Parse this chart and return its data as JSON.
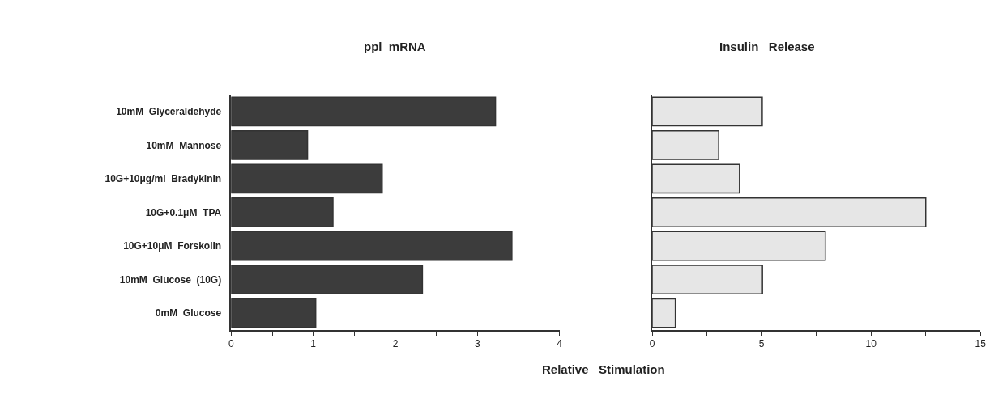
{
  "chart_data": [
    {
      "type": "bar",
      "orientation": "horizontal",
      "title": "ppl  mRNA",
      "categories": [
        "10mM  Glyceraldehyde",
        "10mM  Mannose",
        "10G+10μg/ml  Bradykinin",
        "10G+0.1μM  TPA",
        "10G+10μM  Forskolin",
        "10mM  Glucose  (10G)",
        "0mM  Glucose"
      ],
      "values": [
        3.22,
        0.93,
        1.84,
        1.24,
        3.42,
        2.33,
        1.03
      ],
      "color": "#3c3c3c",
      "xlim": [
        0,
        4
      ],
      "xticks": [
        0,
        {
          "value": 0.5,
          "label": null
        },
        1,
        {
          "value": 1.5,
          "label": null
        },
        2,
        {
          "value": 2.5,
          "label": null
        },
        3,
        {
          "value": 3.5,
          "label": null
        },
        4
      ],
      "annotations": [
        "Relative   Stimulation"
      ]
    },
    {
      "type": "bar",
      "orientation": "horizontal",
      "title": "Insulin   Release",
      "categories": [
        null,
        null,
        null,
        null,
        null,
        null,
        null
      ],
      "values": [
        5.03,
        3.04,
        3.99,
        12.5,
        7.91,
        5.04,
        1.06
      ],
      "color": "#e6e6e6",
      "xlim": [
        0,
        15
      ],
      "xticks": [
        0,
        {
          "value": 2.5,
          "label": null
        },
        5,
        {
          "value": 7.5,
          "label": null
        },
        10,
        {
          "value": 12.5,
          "label": null
        },
        15
      ],
      "tick_labels": "x"
    }
  ]
}
